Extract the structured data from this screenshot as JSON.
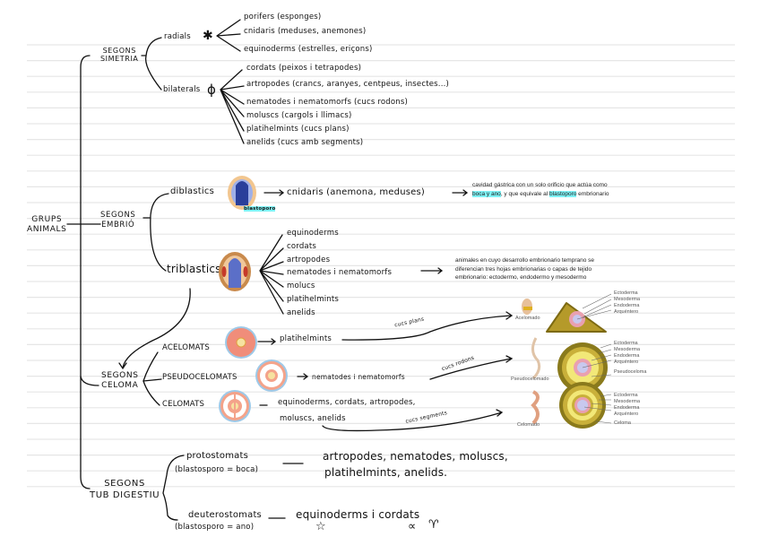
{
  "root": {
    "label_line1": "GRUPS",
    "label_line2": "ANIMALS"
  },
  "symmetry": {
    "label_line1": "SEGONS",
    "label_line2": "SIMETRIA",
    "radial": {
      "label": "radials",
      "symbol": "✱",
      "items": [
        "porifers (esponges)",
        "cnidaris (meduses, anemones)",
        "equinoderms (estrelles, eriçons)"
      ]
    },
    "bilateral": {
      "label": "bilaterals",
      "symbol": "ϕ",
      "items": [
        "cordats (peixos i tetrapodes)",
        "artropodes (crancs, aranyes, centpeus, insectes...)",
        "nematodes i nematomorfs (cucs rodons)",
        "moluscs (cargols i llimacs)",
        "platihelmints (cucs plans)",
        "anelids (cucs amb segments)"
      ]
    }
  },
  "embryo": {
    "label_line1": "SEGONS",
    "label_line2": "EMBRIÓ",
    "diblastic": {
      "label": "diblastics",
      "image_label": "blastoporo",
      "result": "cnidaris (anemona, meduses)",
      "note_parts": [
        "cavidad gástrica con un solo orificio que actúa como ",
        "boca y ano",
        ", y que equivale al ",
        "blastoporo",
        " embrionario"
      ]
    },
    "triblastic": {
      "label": "triblastics",
      "items": [
        "equinoderms",
        "cordats",
        "artropodes",
        "nematodes i nematomorfs",
        "molucs",
        "platihelmints",
        "anelids"
      ],
      "note": "animales en cuyo desarrollo embrionario temprano se diferencian tres hojas embrionarias o capas de tejido embrionario: ectodermo, endodermo y mesodermo"
    }
  },
  "coelom": {
    "label_line1": "SEGONS",
    "label_line2": "CELOMA",
    "groups": [
      {
        "label": "ACELOMATS",
        "result": "platihelmints",
        "tag": "cucs plans"
      },
      {
        "label": "PSEUDOCELOMATS",
        "result": "nematodes i nematomorfs",
        "tag": "cucs rodons"
      },
      {
        "label": "CELOMATS",
        "result_line1": "equinoderms, cordats, artropodes,",
        "result_line2": "moluscs, anelids",
        "tag": "cucs segments"
      }
    ],
    "figures": [
      {
        "name": "Acelomado",
        "labels": [
          "Ectoderma",
          "Mesoderma",
          "Endoderma",
          "Arquéntero"
        ]
      },
      {
        "name": "Pseudocelomado",
        "labels": [
          "Ectoderma",
          "Mesoderma",
          "Endoderma",
          "Arquéntero",
          "Pseudoceloma"
        ]
      },
      {
        "name": "Celomado",
        "labels": [
          "Ectoderma",
          "Mesoderma",
          "Endoderma",
          "Arquéntero",
          "Celoma"
        ]
      }
    ]
  },
  "digestive": {
    "label_line1": "SEGONS",
    "label_line2": "TUB DIGESTIU",
    "protostomes": {
      "label": "protostomats",
      "sub": "(blastosporo = boca)",
      "result_line1": "artropodes, nematodes, moluscs,",
      "result_line2": "platihelmints, anelids."
    },
    "deuterostomes": {
      "label": "deuterostomats",
      "sub": "(blastosporo = ano)",
      "result": "equinoderms i cordats"
    }
  },
  "colors": {
    "highlight": "#7ff3f6",
    "ectoderm": "#8a7a1c",
    "mesoderm": "#c9b03a",
    "endoderm": "#e9a0b0",
    "archenteron": "#c8c8ee"
  }
}
